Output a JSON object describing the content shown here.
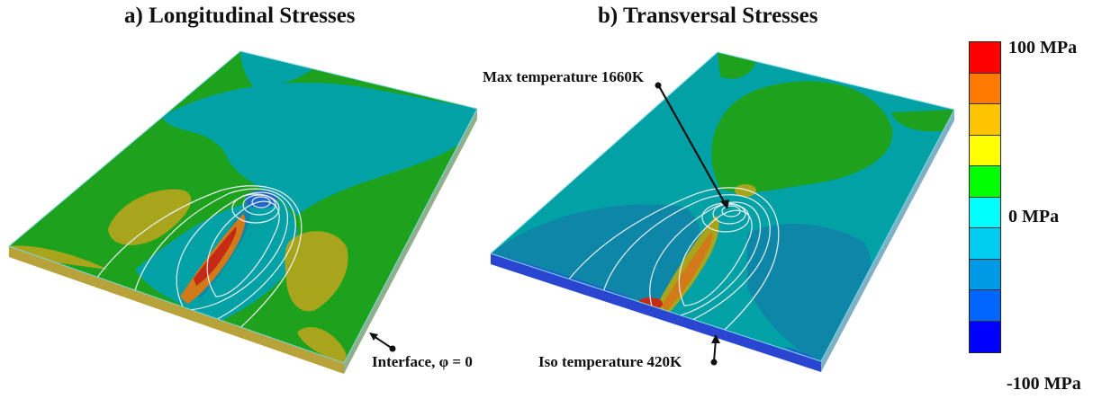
{
  "panels": {
    "a": {
      "title": "a) Longitudinal Stresses"
    },
    "b": {
      "title": "b) Transversal Stresses"
    }
  },
  "annotations": {
    "max_temperature": "Max temperature 1660K",
    "iso_temperature": "Iso temperature 420K",
    "interface": "Interface, φ = 0"
  },
  "colorbar": {
    "max_label": "100 MPa",
    "mid_label": "0 MPa",
    "min_label": "-100 MPa",
    "colors": [
      "#ff0000",
      "#ff7a00",
      "#ffc400",
      "#ffff00",
      "#00ff00",
      "#00ffff",
      "#00ccf0",
      "#0099e6",
      "#0066ff",
      "#0000ff"
    ]
  },
  "palette": {
    "green": "#1ea21e",
    "teal": "#02a1a6",
    "olive": "#a8a51c",
    "steel_blue": "#0e86a8",
    "blue": "#1f66c8",
    "red": "#c52a16",
    "orange": "#d27a1a"
  }
}
